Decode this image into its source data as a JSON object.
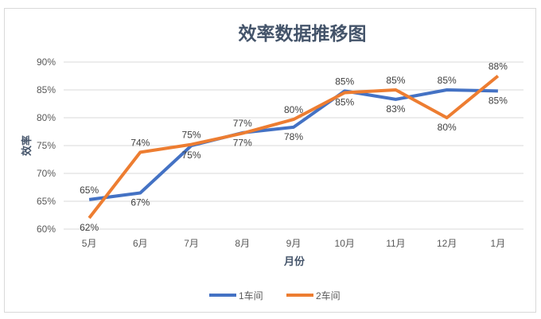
{
  "chart_data": {
    "type": "line",
    "title": "效率数据推移图",
    "xlabel": "月份",
    "ylabel": "效率",
    "categories": [
      "5月",
      "6月",
      "7月",
      "8月",
      "9月",
      "10月",
      "11月",
      "12月",
      "1月"
    ],
    "ylim": [
      0.6,
      0.9
    ],
    "yticks": [
      "60%",
      "65%",
      "70%",
      "75%",
      "80%",
      "85%",
      "90%"
    ],
    "grid": true,
    "legend": "bottom",
    "series": [
      {
        "name": "1车间",
        "color": "#4472C4",
        "values": [
          0.653,
          0.665,
          0.75,
          0.773,
          0.783,
          0.848,
          0.833,
          0.85,
          0.848
        ],
        "labels": [
          "65%",
          "67%",
          "75%",
          "77%",
          "78%",
          "85%",
          "83%",
          "85%",
          "85%"
        ]
      },
      {
        "name": "2车间",
        "color": "#ED7D31",
        "values": [
          0.62,
          0.738,
          0.752,
          0.772,
          0.797,
          0.845,
          0.85,
          0.8,
          0.875
        ],
        "labels": [
          "62%",
          "74%",
          "75%",
          "77%",
          "80%",
          "85%",
          "85%",
          "80%",
          "88%"
        ]
      }
    ]
  }
}
